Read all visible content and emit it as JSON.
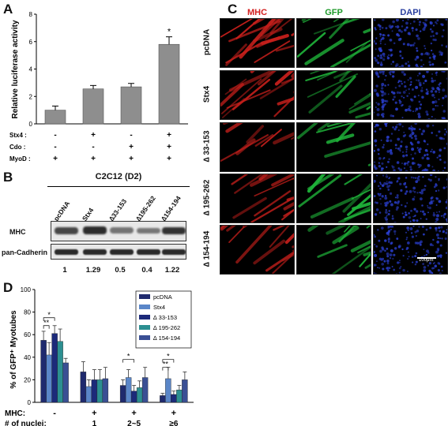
{
  "panels": {
    "a": "A",
    "b": "B",
    "c": "C",
    "d": "D"
  },
  "chart_data": [
    {
      "type": "bar",
      "panel": "A",
      "ylabel": "Relative luciferase activity",
      "ylim": [
        0,
        8
      ],
      "yticks": [
        0,
        2,
        4,
        6,
        8
      ],
      "values": [
        1.0,
        2.55,
        2.7,
        5.8
      ],
      "errors": [
        0.3,
        0.25,
        0.25,
        0.55
      ],
      "significance": [
        "",
        "",
        "",
        "*"
      ],
      "conditions": [
        {
          "label": "Stx4 :",
          "values": [
            "-",
            "+",
            "-",
            "+"
          ]
        },
        {
          "label": "Cdo :",
          "values": [
            "-",
            "-",
            "+",
            "+"
          ]
        },
        {
          "label": "MyoD :",
          "values": [
            "+",
            "+",
            "+",
            "+"
          ]
        }
      ],
      "bar_color": "#8e8e8e"
    },
    {
      "type": "bar",
      "panel": "D",
      "ylabel": "% of GFP⁺ Myotubes",
      "ylim": [
        0,
        100
      ],
      "yticks": [
        0,
        20,
        40,
        60,
        80,
        100
      ],
      "series": [
        {
          "name": "pcDNA",
          "color": "#1f2a6e",
          "values": [
            55,
            27,
            15,
            6
          ],
          "errors": [
            8,
            9,
            5,
            2
          ]
        },
        {
          "name": "Stx4",
          "color": "#5a86c8",
          "values": [
            42,
            14,
            22,
            21
          ],
          "errors": [
            11,
            6,
            7,
            10
          ]
        },
        {
          "name": "∆ 33-153",
          "color": "#1c2a7a",
          "values": [
            61,
            20,
            10,
            7
          ],
          "errors": [
            7,
            9,
            5,
            3
          ]
        },
        {
          "name": "∆ 195-262",
          "color": "#2c8f91",
          "values": [
            54,
            20,
            13,
            11
          ],
          "errors": [
            11,
            9,
            6,
            4
          ]
        },
        {
          "name": "∆ 154-194",
          "color": "#3a4f94",
          "values": [
            35,
            21,
            22,
            20
          ],
          "errors": [
            4,
            10,
            9,
            7
          ]
        }
      ],
      "significance_markers": [
        {
          "group": 0,
          "label": "*"
        },
        {
          "group": 0,
          "label": "**"
        },
        {
          "group": 2,
          "label": "*"
        },
        {
          "group": 3,
          "label": "*"
        },
        {
          "group": 3,
          "label": "**"
        }
      ],
      "categories_mhc": [
        "-",
        "+",
        "+",
        "+"
      ],
      "categories_nuclei": [
        "",
        "1",
        "2~5",
        "≥6"
      ],
      "row_label_mhc": "MHC:",
      "row_label_nuclei": "# of nuclei:"
    }
  ],
  "blot": {
    "title": "C2C12 (D2)",
    "lanes": [
      "pcDNA",
      "Stx4",
      "∆33-153",
      "∆195-262",
      "∆154-194"
    ],
    "rows": [
      "MHC",
      "pan-Cadherin"
    ],
    "quantification": [
      "1",
      "1.29",
      "0.5",
      "0.4",
      "1.22"
    ],
    "mhc_intensity": [
      1.0,
      1.29,
      0.5,
      0.4,
      1.22
    ]
  },
  "micrographs": {
    "columns": [
      "MHC",
      "GFP",
      "DAPI"
    ],
    "column_colors": [
      "#d42020",
      "#1e9a2a",
      "#2a3fa0"
    ],
    "rows": [
      "pcDNA",
      "Stx4",
      "∆ 33-153",
      "∆ 195-262",
      "∆ 154-194"
    ],
    "scale_bar": "100μm",
    "channel_colors": [
      "#c8201c",
      "#1fb43a",
      "#2a3fd0"
    ]
  }
}
